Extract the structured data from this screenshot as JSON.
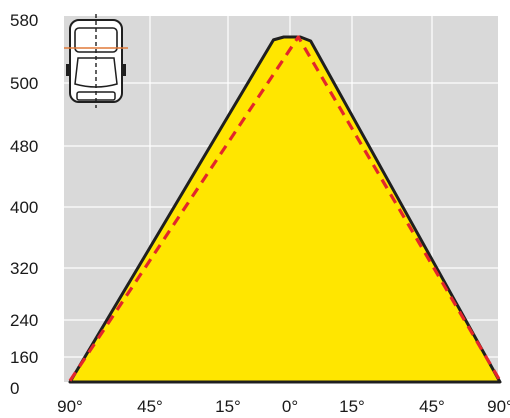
{
  "chart_data": {
    "type": "area",
    "title": "",
    "xlabel": "",
    "ylabel": "",
    "grid": true,
    "y_ticks": [
      "0",
      "160",
      "240",
      "320",
      "400",
      "480",
      "500",
      "580"
    ],
    "x_ticks": [
      "90°",
      "45°",
      "15°",
      "0°",
      "15°",
      "45°",
      "90°"
    ],
    "series": [
      {
        "style": "filled",
        "color": "#ffe600",
        "outline": "#1f1f1f",
        "points": [
          {
            "x": -90,
            "y": 0
          },
          {
            "x": -4,
            "y": 575
          },
          {
            "x": -1.5,
            "y": 580
          },
          {
            "x": 2.5,
            "y": 580
          },
          {
            "x": 5,
            "y": 573
          },
          {
            "x": 90,
            "y": 0
          }
        ]
      },
      {
        "style": "dashed",
        "color": "#e3262b",
        "points": [
          {
            "x": -90,
            "y": 8
          },
          {
            "x": 2,
            "y": 580
          },
          {
            "x": 90,
            "y": 8
          }
        ]
      }
    ],
    "inset_icon": "van-top-view-icon",
    "inset_marker_color": "#e07a3a"
  }
}
